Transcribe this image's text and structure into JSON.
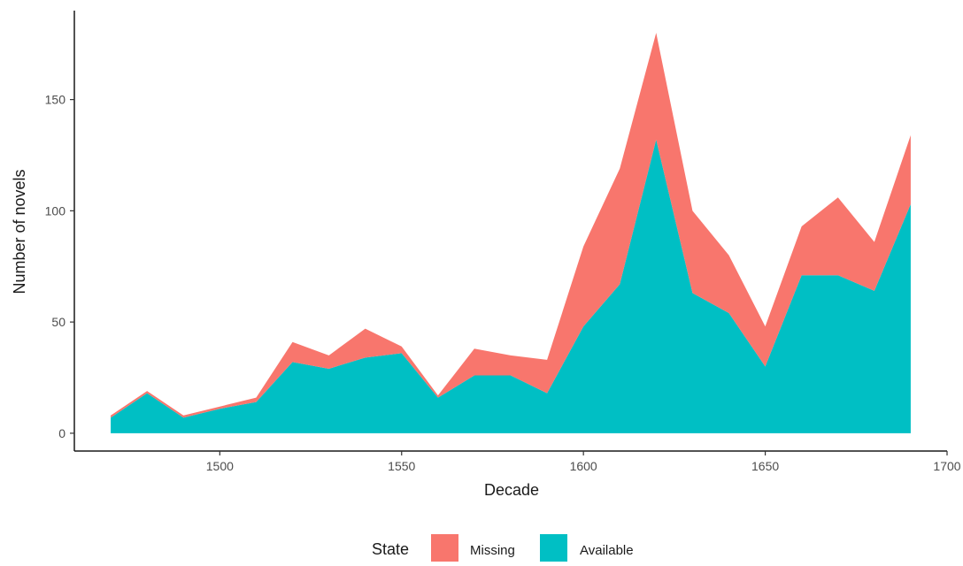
{
  "chart_data": {
    "type": "area",
    "stacked": true,
    "xlabel": "Decade",
    "ylabel": "Number of novels",
    "xlim": [
      1460,
      1700
    ],
    "ylim": [
      -8,
      190
    ],
    "xticks": [
      1500,
      1550,
      1600,
      1650,
      1700
    ],
    "yticks": [
      0,
      50,
      100,
      150
    ],
    "grid": false,
    "legend": {
      "title": "State",
      "position": "bottom",
      "entries": [
        {
          "name": "Missing",
          "color": "#F8766D"
        },
        {
          "name": "Available",
          "color": "#00BFC4"
        }
      ]
    },
    "x": [
      1470,
      1480,
      1490,
      1500,
      1510,
      1520,
      1530,
      1540,
      1550,
      1560,
      1570,
      1580,
      1590,
      1600,
      1610,
      1620,
      1630,
      1640,
      1650,
      1660,
      1670,
      1680,
      1690
    ],
    "series": [
      {
        "name": "Available",
        "color": "#00BFC4",
        "values": [
          7,
          18,
          7,
          11,
          14,
          32,
          29,
          34,
          36,
          16,
          26,
          26,
          18,
          48,
          67,
          132,
          63,
          54,
          30,
          71,
          71,
          64,
          103
        ]
      },
      {
        "name": "Missing",
        "color": "#F8766D",
        "values": [
          1,
          1,
          1,
          1,
          2,
          9,
          6,
          13,
          3,
          1,
          12,
          9,
          15,
          36,
          52,
          48,
          37,
          26,
          18,
          22,
          35,
          22,
          31
        ]
      }
    ]
  }
}
